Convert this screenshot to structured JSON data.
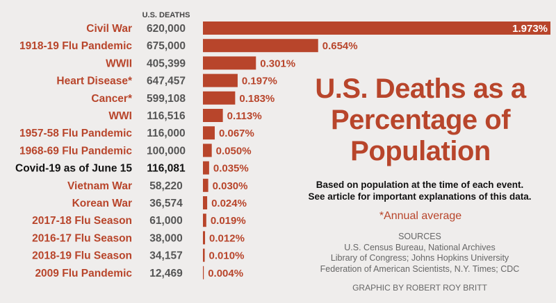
{
  "chart_data": {
    "type": "bar",
    "orientation": "horizontal",
    "title": "U.S. Deaths as a Percentage of Population",
    "subtitle_lines": [
      "Based on population at the time of each event.",
      "See article for important explanations of this data."
    ],
    "column_header": "U.S. DEATHS",
    "footnote": "*Annual average",
    "sources_heading": "SOURCES",
    "sources_lines": [
      "U.S. Census Bureau, National Archives",
      "Library of Congress; Johns Hopkins University",
      "Federation of American Scientists, N.Y. Times; CDC"
    ],
    "credit": "GRAPHIC BY ROBERT ROY BRITT",
    "categories": [
      "Civil War",
      "1918-19 Flu Pandemic",
      "WWII",
      "Heart Disease*",
      "Cancer*",
      "WWI",
      "1957-58 Flu Pandemic",
      "1968-69 Flu Pandemic",
      "Covid-19 as of June 15",
      "Vietnam War",
      "Korean War",
      "2017-18 Flu Season",
      "2016-17 Flu Season",
      "2018-19 Flu Season",
      "2009 Flu Pandemic"
    ],
    "deaths": [
      "620,000",
      "675,000",
      "405,399",
      "647,457",
      "599,108",
      "116,516",
      "116,000",
      "100,000",
      "116,081",
      "58,220",
      "36,574",
      "61,000",
      "38,000",
      "34,157",
      "12,469"
    ],
    "values": [
      1.973,
      0.654,
      0.301,
      0.197,
      0.183,
      0.113,
      0.067,
      0.05,
      0.035,
      0.03,
      0.024,
      0.019,
      0.012,
      0.01,
      0.004
    ],
    "value_labels": [
      "1.973%",
      "0.654%",
      "0.301%",
      "0.197%",
      "0.183%",
      "0.113%",
      "0.067%",
      "0.050%",
      "0.035%",
      "0.030%",
      "0.024%",
      "0.019%",
      "0.012%",
      "0.010%",
      "0.004%"
    ],
    "highlighted_category": "Covid-19 as of June 15",
    "colors": {
      "bar": "#b8452b",
      "highlight_text": "#111111",
      "background": "#efedec"
    }
  }
}
